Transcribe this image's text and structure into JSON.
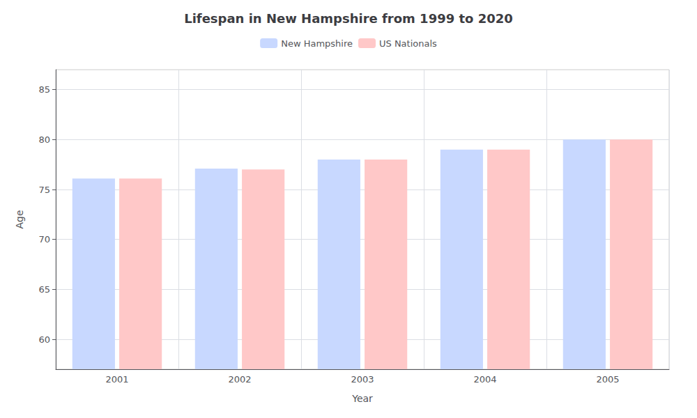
{
  "chart_data": {
    "type": "bar",
    "title": "Lifespan in New Hampshire from 1999 to 2020",
    "xlabel": "Year",
    "ylabel": "Age",
    "categories": [
      "2001",
      "2002",
      "2003",
      "2004",
      "2005"
    ],
    "series": [
      {
        "name": "New Hampshire",
        "color": "#c8d8ff",
        "values": [
          76.1,
          77.1,
          78.0,
          79.0,
          80.0
        ]
      },
      {
        "name": "US Nationals",
        "color": "#ffc8c8",
        "values": [
          76.1,
          77.0,
          78.0,
          79.0,
          80.0
        ]
      }
    ],
    "ylim": [
      57,
      87
    ],
    "yticks": [
      60,
      65,
      70,
      75,
      80,
      85
    ],
    "grid": true,
    "legend": "top"
  }
}
